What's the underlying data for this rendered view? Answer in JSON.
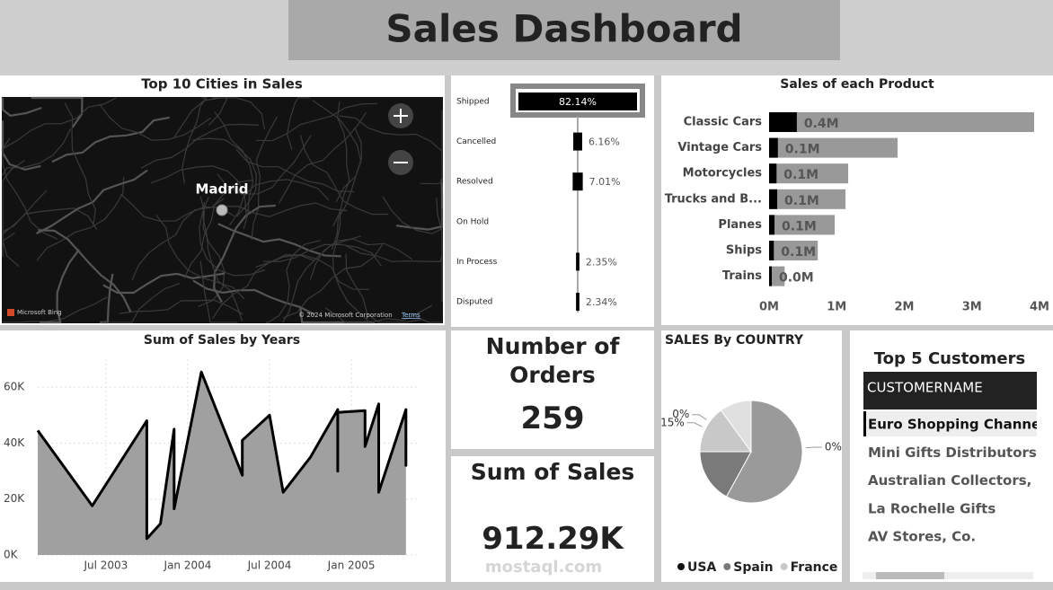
{
  "title": "Sales Dashboard",
  "map": {
    "title": "Top 10 Cities in Sales",
    "city": "Madrid",
    "credit": "Microsoft Bing",
    "copyright": "© 2024 Microsoft Corporation",
    "terms": "Terms"
  },
  "cards": [
    {
      "label": "Number of Orders",
      "value": "259"
    },
    {
      "label": "Sum of Sales",
      "value": "912.29K"
    }
  ],
  "table": {
    "title": "Top 5 Customers",
    "header": "CUSTOMERNAME",
    "rows": [
      "Euro Shopping Channel",
      "Mini Gifts Distributors Ltd.",
      "Australian Collectors, Co.",
      "La Rochelle Gifts",
      "AV Stores, Co."
    ]
  },
  "watermark": "mostaql.com",
  "chart_data": [
    {
      "type": "funnel",
      "color": "#000000",
      "categories": [
        "Shipped",
        "Cancelled",
        "Resolved",
        "On Hold",
        "In Process",
        "Disputed"
      ],
      "values": [
        82.14,
        6.16,
        7.01,
        0,
        2.35,
        2.34
      ],
      "value_labels": [
        "82.14%",
        "6.16%",
        "7.01%",
        null,
        "2.35%",
        "2.34%"
      ]
    },
    {
      "type": "hbar",
      "title": "Sales of each Product",
      "categories": [
        "Classic Cars",
        "Vintage Cars",
        "Motorcycles",
        "Trucks and B...",
        "Planes",
        "Ships",
        "Trains"
      ],
      "series": [
        {
          "color": "#999999",
          "values": [
            3920000,
            1900000,
            1170000,
            1130000,
            970000,
            720000,
            230000
          ]
        },
        {
          "color": "#000000",
          "values": [
            410000,
            130000,
            110000,
            120000,
            80000,
            70000,
            40000
          ],
          "value_labels": [
            "0.4M",
            "0.1M",
            "0.1M",
            "0.1M",
            "0.1M",
            "0.1M",
            "0.0M"
          ]
        }
      ],
      "xlim": [
        0,
        4000000
      ],
      "xticks": [
        {
          "value": 0,
          "label": "0M"
        },
        {
          "value": 1000000,
          "label": "1M"
        },
        {
          "value": 2000000,
          "label": "2M"
        },
        {
          "value": 3000000,
          "label": "3M"
        },
        {
          "value": 4000000,
          "label": "4M"
        }
      ]
    },
    {
      "type": "area",
      "title": "Sum of Sales by Years",
      "color": "#a0a0a0",
      "line_color": "#000000",
      "grid": true,
      "x": [
        "2003-02",
        "2003-06",
        "2003-10",
        "2003-10",
        "2003-11",
        "2003-12",
        "2003-12",
        "2004-02",
        "2004-05",
        "2004-05",
        "2004-07",
        "2004-08",
        "2004-10",
        "2004-12",
        "2004-12",
        "2004-12",
        "2005-02",
        "2005-02",
        "2005-03",
        "2005-03",
        "2005-05",
        "2005-05",
        "2005-05"
      ],
      "values": [
        44500,
        17600,
        48000,
        5800,
        11200,
        45000,
        16500,
        65400,
        28500,
        41000,
        50000,
        22400,
        35000,
        52000,
        30000,
        51000,
        51600,
        38800,
        54000,
        22400,
        52000,
        32000,
        35300
      ],
      "xlim": [
        "2003-02",
        "2005-06"
      ],
      "xticks": [
        {
          "value": "2003-07",
          "label": "Jul 2003"
        },
        {
          "value": "2004-01",
          "label": "Jan 2004"
        },
        {
          "value": "2004-07",
          "label": "Jul 2004"
        },
        {
          "value": "2005-01",
          "label": "Jan 2005"
        }
      ],
      "ylim": [
        0,
        70000
      ],
      "yticks": [
        {
          "value": 0,
          "label": "0K"
        },
        {
          "value": 20000,
          "label": "20K"
        },
        {
          "value": 40000,
          "label": "40K"
        },
        {
          "value": 60000,
          "label": "60K"
        }
      ]
    },
    {
      "type": "pie",
      "title": "SALES By COUNTRY",
      "categories": [
        "USA",
        null,
        "Spain",
        "France",
        null,
        null
      ],
      "values": [
        0,
        58,
        17,
        15,
        10,
        0
      ],
      "value_labels": [
        "0%",
        null,
        null,
        "15%",
        null,
        "0%"
      ],
      "colors": [
        "#111111",
        "#9a9a9a",
        "#7a7a7a",
        "#c8c8c8",
        "#e0e0e0",
        "#bbbbbb"
      ]
    }
  ]
}
